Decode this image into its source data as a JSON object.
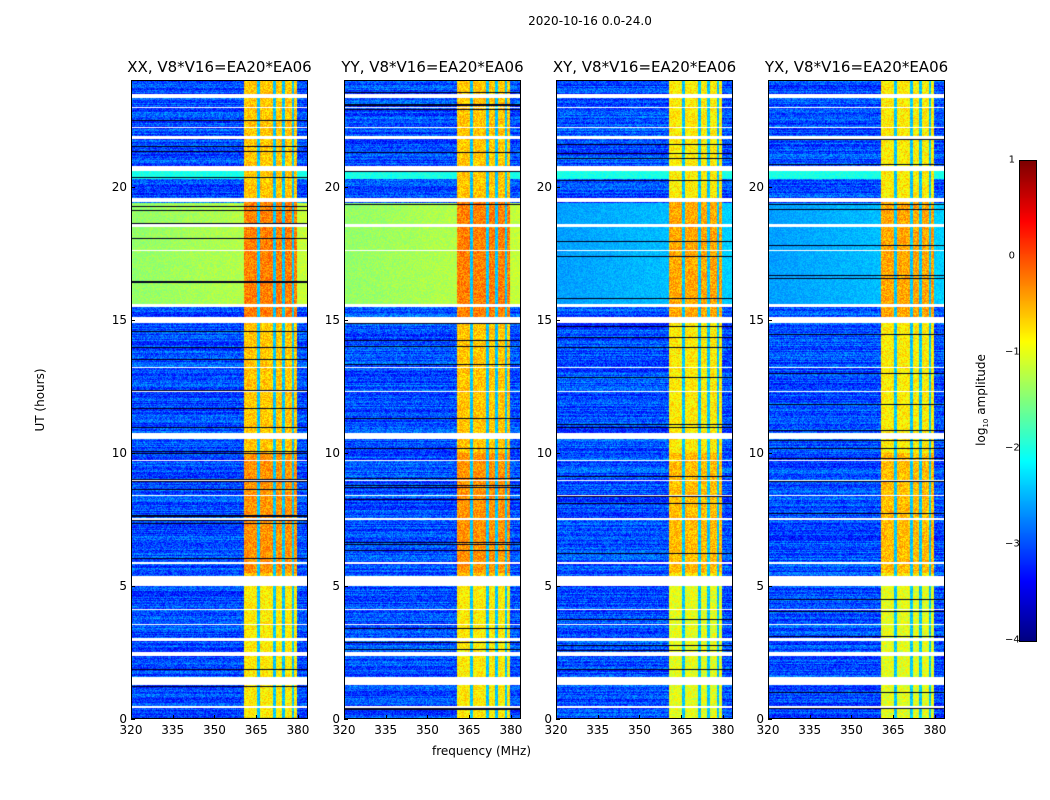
{
  "chart_data": {
    "type": "heatmap",
    "suptitle": "2020-10-16 0.0-24.0",
    "xlabel": "frequency (MHz)",
    "ylabel": "UT (hours)",
    "xlim": [
      320,
      383.6
    ],
    "ylim": [
      0,
      24
    ],
    "xticks": [
      "320",
      "335",
      "350",
      "365",
      "380"
    ],
    "xtick_values": [
      320,
      335,
      350,
      365,
      380
    ],
    "yticks": [
      "0",
      "5",
      "10",
      "15",
      "20"
    ],
    "ytick_values": [
      0,
      5,
      10,
      15,
      20
    ],
    "colormap": "jet",
    "colorbar": {
      "label_main": "log",
      "label_sub": "10",
      "label_tail": " amplitude",
      "range": [
        -4,
        1
      ],
      "ticks": [
        "1",
        "0",
        "−1",
        "−2",
        "−3",
        "−4"
      ],
      "tick_values": [
        1,
        0,
        -1,
        -2,
        -3,
        -4
      ]
    },
    "panels": [
      {
        "title": "XX, V8*V16=EA20*EA06",
        "pol": "XX",
        "quiet_level_15_19h": -1.4,
        "band_level": -0.6
      },
      {
        "title": "YY, V8*V16=EA20*EA06",
        "pol": "YY",
        "quiet_level_15_19h": -1.4,
        "band_level": -0.6
      },
      {
        "title": "XY, V8*V16=EA20*EA06",
        "pol": "XY",
        "quiet_level_15_19h": -2.6,
        "band_level": -0.8
      },
      {
        "title": "YX, V8*V16=EA20*EA06",
        "pol": "YX",
        "quiet_level_15_19h": -2.6,
        "band_level": -0.8
      }
    ],
    "bright_band_mhz": [
      360.3,
      379.4
    ],
    "band_dividers_mhz": [
      365.5,
      371.5,
      374.5,
      378.0
    ],
    "background_level": -3.0,
    "flagged_time_ranges_hours": [
      [
        0.45,
        0.5
      ],
      [
        1.3,
        1.6
      ],
      [
        2.4,
        2.55
      ],
      [
        2.95,
        3.05
      ],
      [
        3.55,
        3.6
      ],
      [
        4.1,
        4.15
      ],
      [
        5.0,
        5.4
      ],
      [
        5.85,
        5.9
      ],
      [
        7.5,
        7.55
      ],
      [
        8.4,
        8.45
      ],
      [
        8.95,
        9.0
      ],
      [
        9.7,
        9.75
      ],
      [
        10.55,
        10.75
      ],
      [
        12.3,
        12.35
      ],
      [
        13.2,
        13.25
      ],
      [
        14.9,
        15.1
      ],
      [
        15.5,
        15.6
      ],
      [
        17.6,
        17.65
      ],
      [
        18.5,
        18.6
      ],
      [
        19.45,
        19.6
      ],
      [
        20.6,
        20.8
      ],
      [
        21.8,
        21.9
      ],
      [
        22.2,
        22.25
      ],
      [
        22.95,
        23.0
      ],
      [
        23.35,
        23.5
      ]
    ]
  }
}
